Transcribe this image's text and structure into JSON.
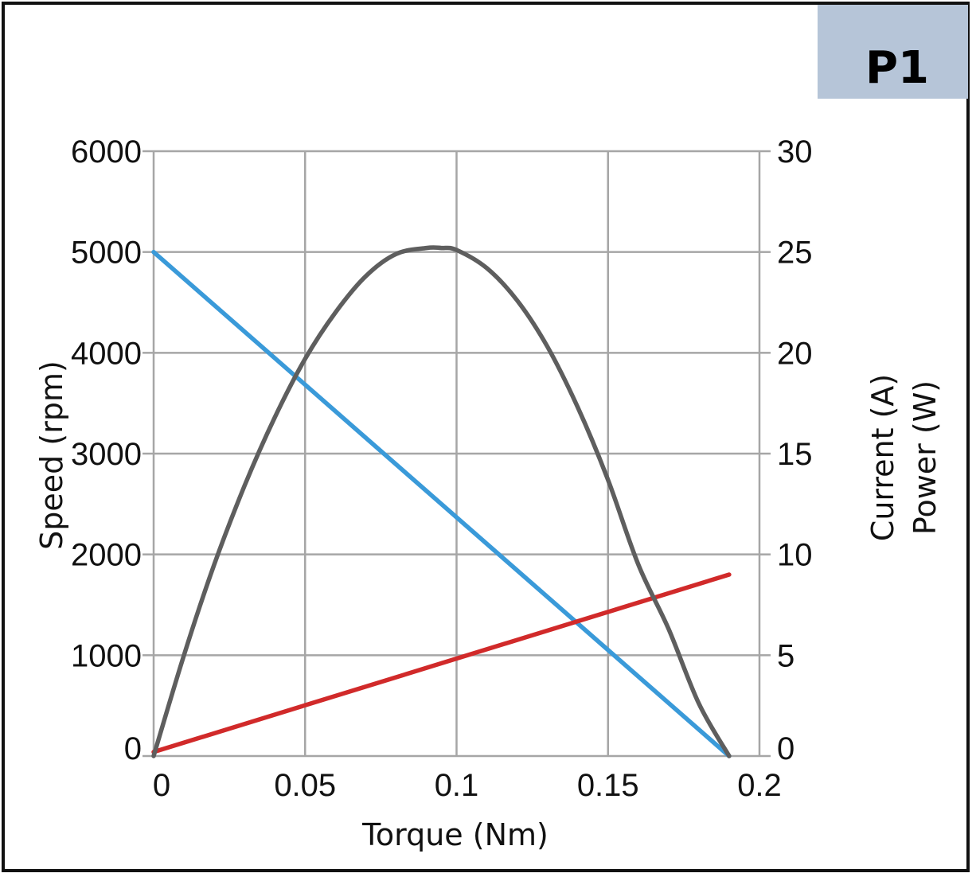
{
  "badge": {
    "label": "P1",
    "color": "#b6c5d8"
  },
  "chart_data": {
    "type": "line",
    "xlabel": "Torque (Nm)",
    "ylabel": "Speed (rpm)",
    "y2label": [
      "Current (A)",
      "Power (W)"
    ],
    "xlim": [
      0,
      0.2
    ],
    "ylim": [
      0,
      6000
    ],
    "y2lim": [
      0,
      30
    ],
    "xticks": [
      "0",
      "0.05",
      "0.1",
      "0.15",
      "0.2"
    ],
    "yticks": [
      "0",
      "1000",
      "2000",
      "3000",
      "4000",
      "5000",
      "6000"
    ],
    "y2ticks": [
      "0",
      "5",
      "10",
      "15",
      "20",
      "25",
      "30"
    ],
    "grid": true,
    "series": [
      {
        "axis": "left",
        "color": "#3a9ad9",
        "x": [
          0,
          0.19
        ],
        "y": [
          5000,
          0
        ]
      },
      {
        "axis": "right",
        "color": "#d12a2a",
        "x": [
          0,
          0.19
        ],
        "y": [
          0.2,
          9
        ]
      },
      {
        "axis": "right",
        "color": "#5e5e5e",
        "x": [
          0,
          0.01,
          0.02,
          0.03,
          0.04,
          0.05,
          0.06,
          0.07,
          0.08,
          0.09,
          0.095,
          0.1,
          0.11,
          0.12,
          0.13,
          0.14,
          0.15,
          0.16,
          0.17,
          0.18,
          0.19
        ],
        "y": [
          0,
          5.0,
          9.5,
          13.4,
          16.8,
          19.7,
          22.0,
          23.8,
          24.9,
          25.2,
          25.2,
          25.1,
          24.2,
          22.6,
          20.3,
          17.3,
          13.7,
          9.5,
          6.3,
          2.6,
          0
        ]
      }
    ]
  }
}
